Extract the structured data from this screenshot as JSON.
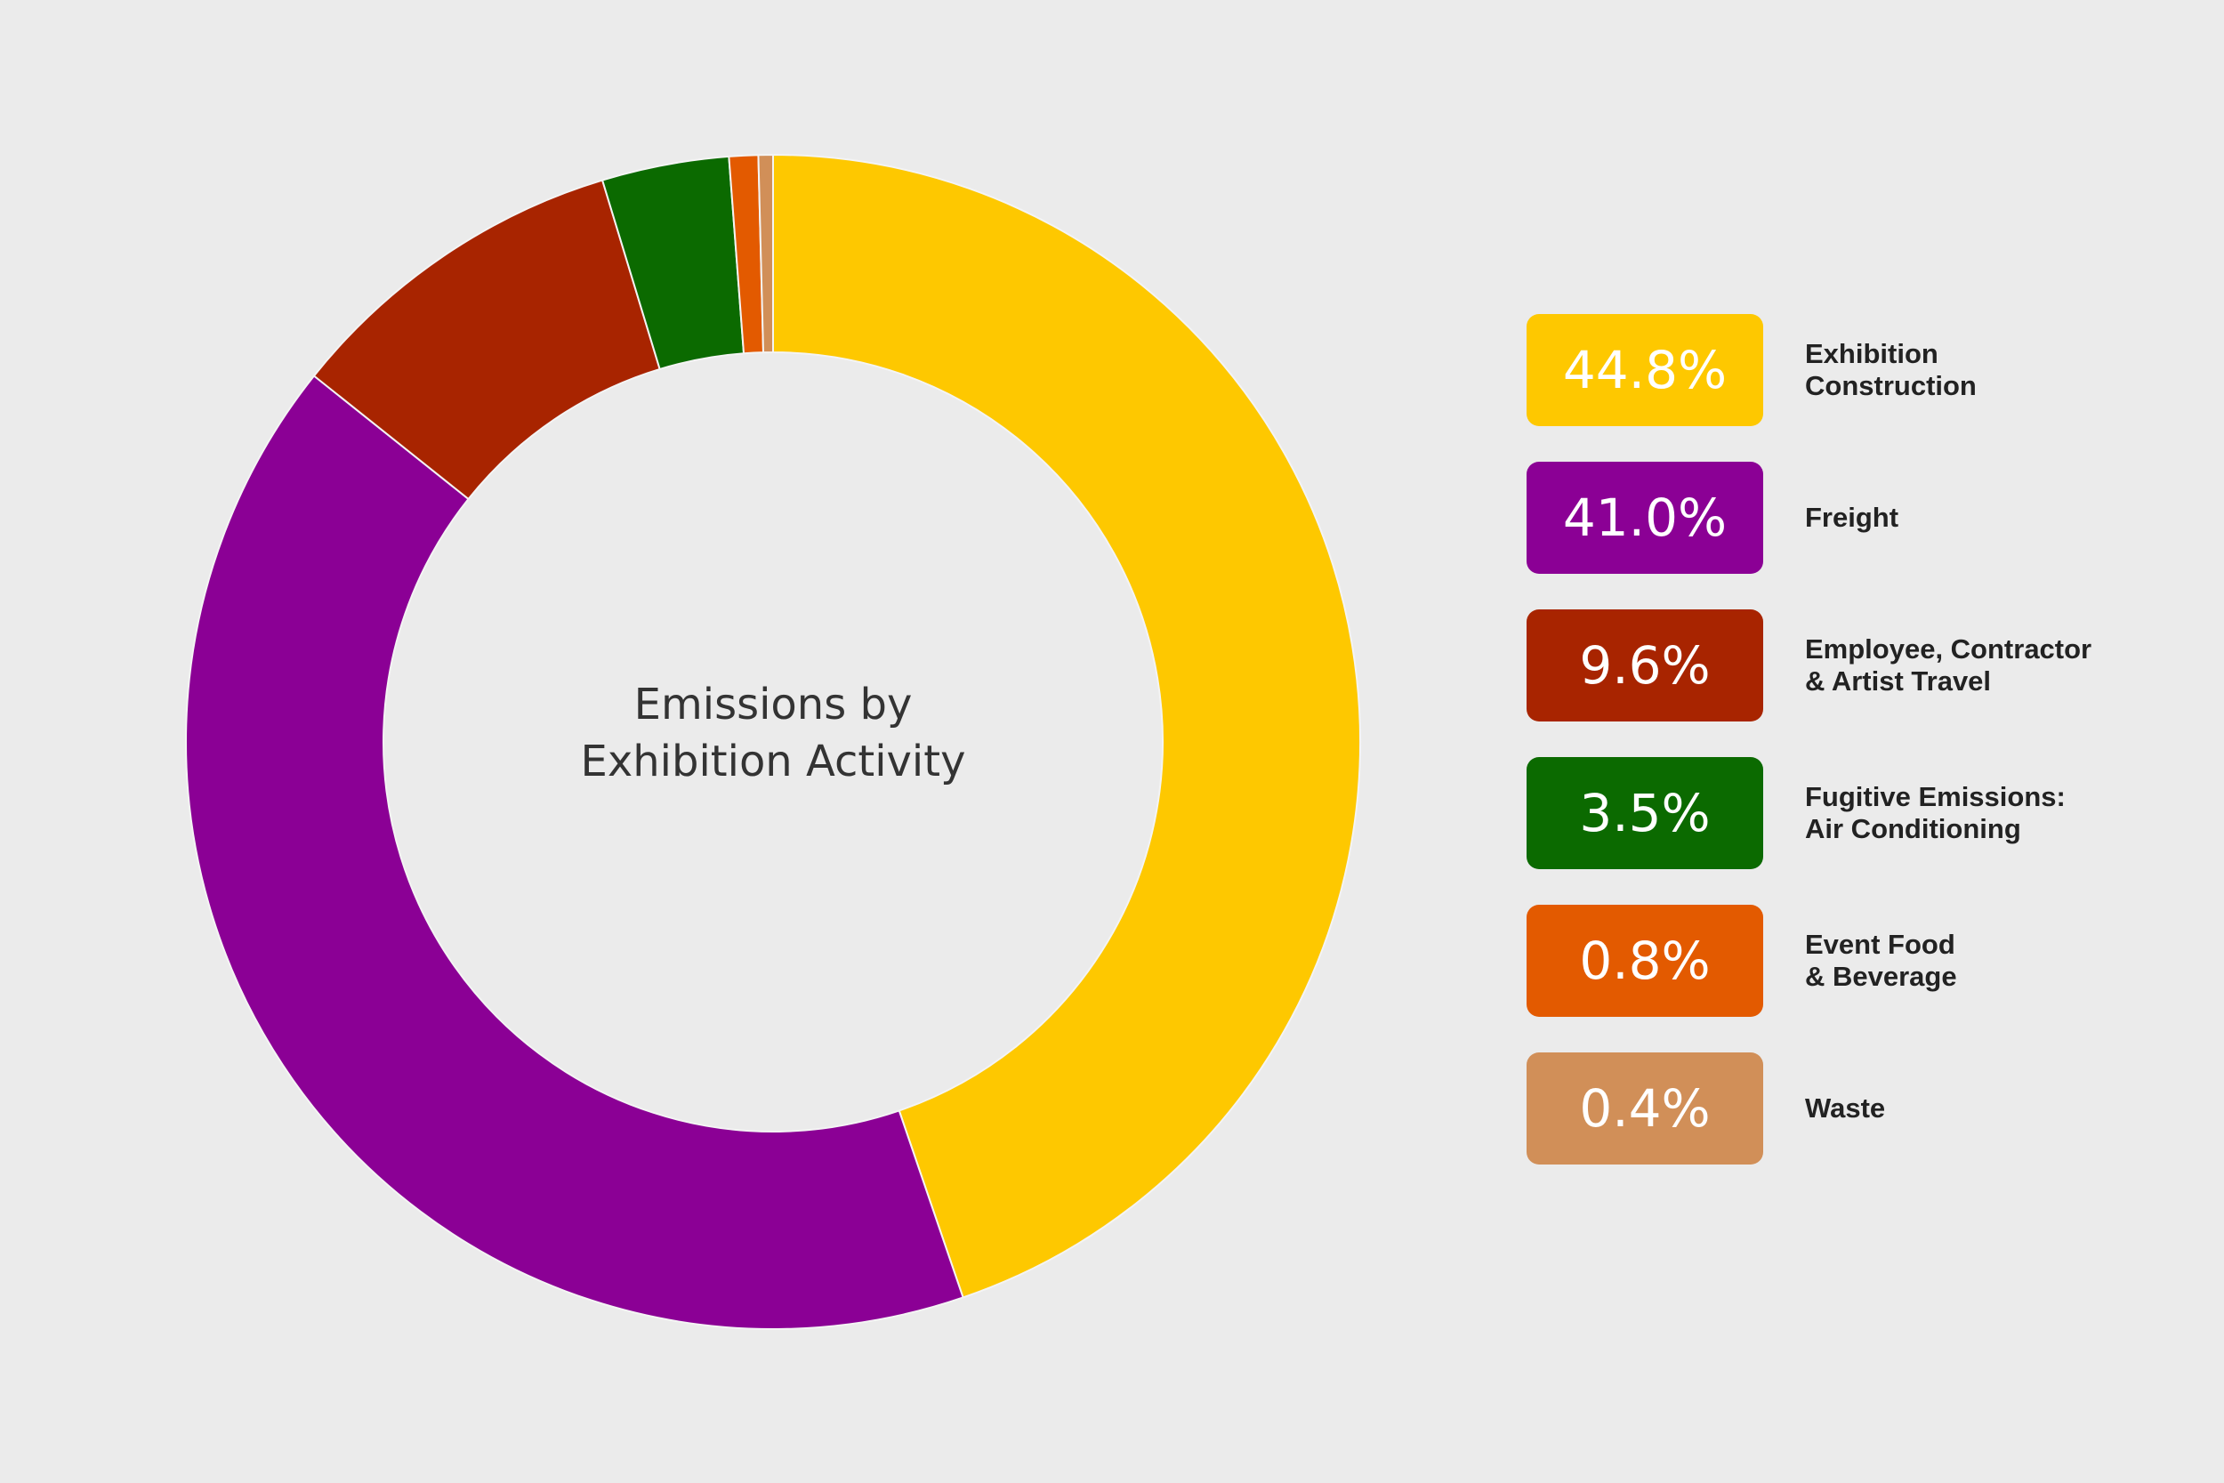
{
  "chart_data": {
    "type": "pie",
    "donut": true,
    "title": [
      "Emissions by",
      "Exhibition Activity"
    ],
    "slices": [
      {
        "label": [
          "Exhibition",
          "Construction"
        ],
        "value": 44.8,
        "value_label": "44.8%",
        "color": "#fec800"
      },
      {
        "label": [
          "Freight"
        ],
        "value": 41.0,
        "value_label": "41.0%",
        "color": "#8b0095"
      },
      {
        "label": [
          "Employee, Contractor",
          "& Artist Travel"
        ],
        "value": 9.6,
        "value_label": "9.6%",
        "color": "#a82400"
      },
      {
        "label": [
          "Fugitive Emissions:",
          "Air Conditioning"
        ],
        "value": 3.5,
        "value_label": "3.5%",
        "color": "#0b6a00"
      },
      {
        "label": [
          "Event Food",
          "& Beverage"
        ],
        "value": 0.8,
        "value_label": "0.8%",
        "color": "#e35a00"
      },
      {
        "label": [
          "Waste"
        ],
        "value": 0.4,
        "value_label": "0.4%",
        "color": "#d18f58"
      }
    ],
    "start_angle": "12 o'clock",
    "direction": "clockwise",
    "legend_position": "right"
  }
}
